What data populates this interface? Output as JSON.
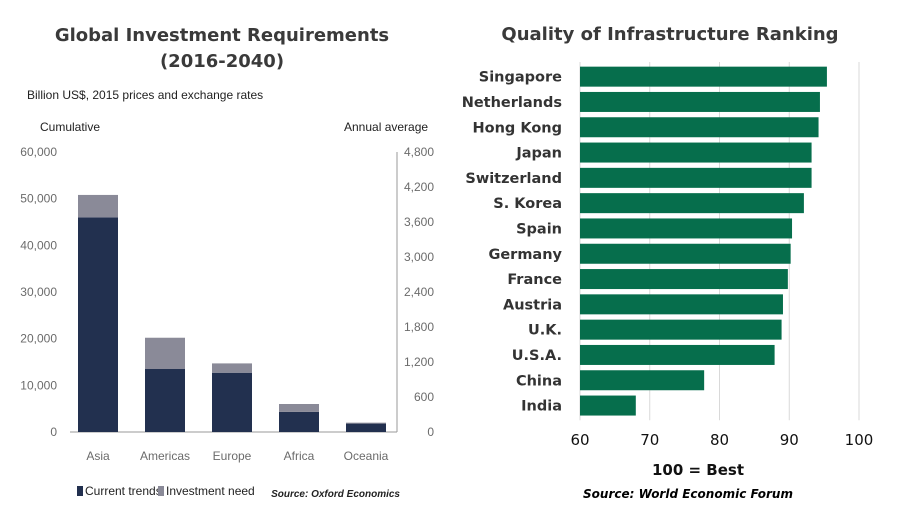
{
  "colors": {
    "current_trends": "#22304f",
    "investment_need": "#8a8a98",
    "ranking_bar": "#066e4c",
    "left_axis": "#9a9a9a"
  },
  "chart_data": [
    {
      "type": "bar",
      "stacked": true,
      "title": "Global Investment Requirements",
      "subtitle": "(2016-2040)",
      "units_note": "Billion US$, 2015 prices and exchange rates",
      "ylabel_left": "Cumulative",
      "ylabel_right": "Annual average",
      "categories": [
        "Asia",
        "Americas",
        "Europe",
        "Africa",
        "Oceania"
      ],
      "series": [
        {
          "name": "Current trends",
          "values": [
            46000,
            13500,
            12700,
            4300,
            1800
          ]
        },
        {
          "name": "Investment need",
          "values": [
            4800,
            6700,
            2000,
            1700,
            200
          ]
        }
      ],
      "ylim": [
        0,
        60000
      ],
      "yticks": [
        "0",
        "10,000",
        "20,000",
        "30,000",
        "40,000",
        "50,000",
        "60,000"
      ],
      "y2lim": [
        0,
        4800
      ],
      "y2ticks": [
        "0",
        "600",
        "1,200",
        "1,800",
        "2,400",
        "3,000",
        "3,600",
        "4,200",
        "4,800"
      ],
      "legend_position": "bottom-left",
      "source": "Source: Oxford Economics"
    },
    {
      "type": "bar",
      "orientation": "horizontal",
      "title": "Quality of Infrastructure Ranking",
      "categories": [
        "Singapore",
        "Netherlands",
        "Hong Kong",
        "Japan",
        "Switzerland",
        "S. Korea",
        "Spain",
        "Germany",
        "France",
        "Austria",
        "U.K.",
        "U.S.A.",
        "China",
        "India"
      ],
      "values": [
        95.4,
        94.4,
        94.2,
        93.2,
        93.2,
        92.1,
        90.4,
        90.2,
        89.8,
        89.1,
        88.9,
        87.9,
        77.8,
        68.0
      ],
      "xlim": [
        60,
        100
      ],
      "xticks": [
        "60",
        "70",
        "80",
        "90",
        "100"
      ],
      "xlabel": "100 = Best",
      "grid": true,
      "source": "Source: World Economic Forum"
    }
  ]
}
